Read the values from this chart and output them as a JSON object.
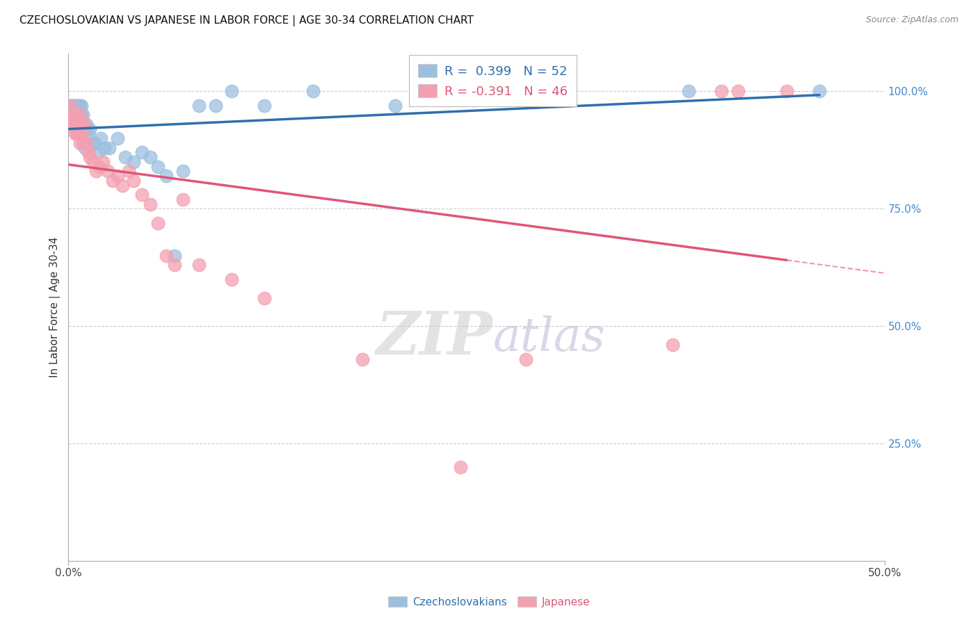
{
  "title": "CZECHOSLOVAKIAN VS JAPANESE IN LABOR FORCE | AGE 30-34 CORRELATION CHART",
  "source": "Source: ZipAtlas.com",
  "ylabel": "In Labor Force | Age 30-34",
  "xlim": [
    0.0,
    0.5
  ],
  "ylim": [
    0.0,
    1.08
  ],
  "yticks": [
    0.25,
    0.5,
    0.75,
    1.0
  ],
  "ytick_labels": [
    "25.0%",
    "50.0%",
    "75.0%",
    "100.0%"
  ],
  "xtick_left_label": "0.0%",
  "xtick_right_label": "50.0%",
  "legend_blue_label": "Czechoslovakians",
  "legend_pink_label": "Japanese",
  "R_blue": 0.399,
  "N_blue": 52,
  "R_pink": -0.391,
  "N_pink": 46,
  "blue_color": "#9BBFDF",
  "pink_color": "#F4A0B0",
  "blue_line_color": "#2F6FAD",
  "pink_line_color": "#E05577",
  "watermark_zip": "ZIP",
  "watermark_atlas": "atlas",
  "blue_x": [
    0.001,
    0.001,
    0.002,
    0.002,
    0.002,
    0.003,
    0.003,
    0.003,
    0.004,
    0.004,
    0.004,
    0.005,
    0.005,
    0.005,
    0.006,
    0.006,
    0.006,
    0.007,
    0.007,
    0.008,
    0.008,
    0.009,
    0.009,
    0.01,
    0.01,
    0.011,
    0.012,
    0.013,
    0.015,
    0.016,
    0.018,
    0.02,
    0.022,
    0.025,
    0.03,
    0.035,
    0.04,
    0.045,
    0.05,
    0.055,
    0.06,
    0.065,
    0.07,
    0.08,
    0.09,
    0.1,
    0.12,
    0.15,
    0.2,
    0.28,
    0.38,
    0.46
  ],
  "blue_y": [
    0.97,
    0.95,
    0.97,
    0.95,
    0.97,
    0.97,
    0.95,
    0.97,
    0.97,
    0.95,
    0.97,
    0.95,
    0.93,
    0.97,
    0.95,
    0.93,
    0.97,
    0.95,
    0.97,
    0.95,
    0.97,
    0.93,
    0.95,
    0.92,
    0.88,
    0.93,
    0.91,
    0.92,
    0.89,
    0.89,
    0.87,
    0.9,
    0.88,
    0.88,
    0.9,
    0.86,
    0.85,
    0.87,
    0.86,
    0.84,
    0.82,
    0.65,
    0.83,
    0.97,
    0.97,
    1.0,
    0.97,
    1.0,
    0.97,
    1.0,
    1.0,
    1.0
  ],
  "pink_x": [
    0.001,
    0.002,
    0.002,
    0.003,
    0.003,
    0.004,
    0.004,
    0.005,
    0.005,
    0.006,
    0.006,
    0.007,
    0.007,
    0.008,
    0.008,
    0.009,
    0.01,
    0.011,
    0.012,
    0.013,
    0.015,
    0.017,
    0.019,
    0.021,
    0.024,
    0.027,
    0.03,
    0.033,
    0.037,
    0.04,
    0.045,
    0.05,
    0.055,
    0.06,
    0.065,
    0.07,
    0.08,
    0.1,
    0.12,
    0.18,
    0.24,
    0.28,
    0.37,
    0.4,
    0.41,
    0.44
  ],
  "pink_y": [
    0.97,
    0.95,
    0.93,
    0.95,
    0.93,
    0.91,
    0.95,
    0.93,
    0.91,
    0.93,
    0.91,
    0.95,
    0.89,
    0.91,
    0.93,
    0.89,
    0.93,
    0.89,
    0.87,
    0.86,
    0.85,
    0.83,
    0.84,
    0.85,
    0.83,
    0.81,
    0.82,
    0.8,
    0.83,
    0.81,
    0.78,
    0.76,
    0.72,
    0.65,
    0.63,
    0.77,
    0.63,
    0.6,
    0.56,
    0.43,
    0.2,
    0.43,
    0.46,
    1.0,
    1.0,
    1.0
  ]
}
